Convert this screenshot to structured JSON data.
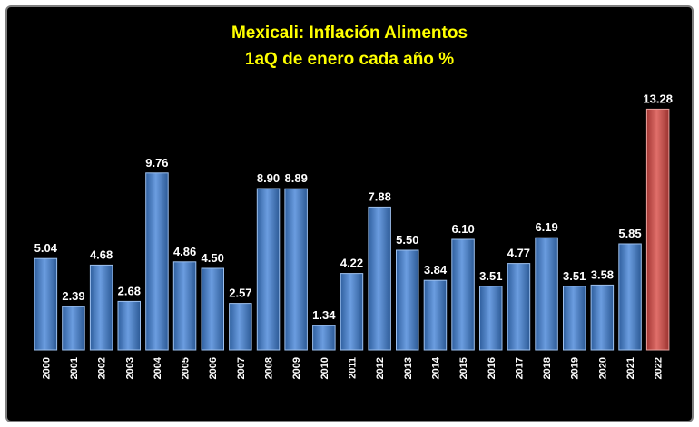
{
  "chart_data": {
    "type": "bar",
    "title": "Mexicali: Inflación Alimentos",
    "subtitle": "1aQ de enero cada año %",
    "categories": [
      "2000",
      "2001",
      "2002",
      "2003",
      "2004",
      "2005",
      "2006",
      "2007",
      "2008",
      "2009",
      "2010",
      "2011",
      "2012",
      "2013",
      "2014",
      "2015",
      "2016",
      "2017",
      "2018",
      "2019",
      "2020",
      "2021",
      "2022"
    ],
    "values": [
      5.04,
      2.39,
      4.68,
      2.68,
      9.76,
      4.86,
      4.5,
      2.57,
      8.9,
      8.89,
      1.34,
      4.22,
      7.88,
      5.5,
      3.84,
      6.1,
      3.51,
      4.77,
      6.19,
      3.51,
      3.58,
      5.85,
      13.28
    ],
    "value_labels": [
      "5.04",
      "2.39",
      "4.68",
      "2.68",
      "9.76",
      "4.86",
      "4.50",
      "2.57",
      "8.90",
      "8.89",
      "1.34",
      "4.22",
      "7.88",
      "5.50",
      "3.84",
      "6.10",
      "3.51",
      "4.77",
      "6.19",
      "3.51",
      "3.58",
      "5.85",
      "13.28"
    ],
    "ylim": [
      0,
      14.1
    ],
    "xlabel": "",
    "ylabel": "",
    "grid": false,
    "colors": {
      "background": "#000000",
      "bar": "#4f81bd",
      "highlight_bar": "#c0504d",
      "title": "#ffff00",
      "labels": "#ffffff"
    },
    "highlight_category": "2022"
  }
}
